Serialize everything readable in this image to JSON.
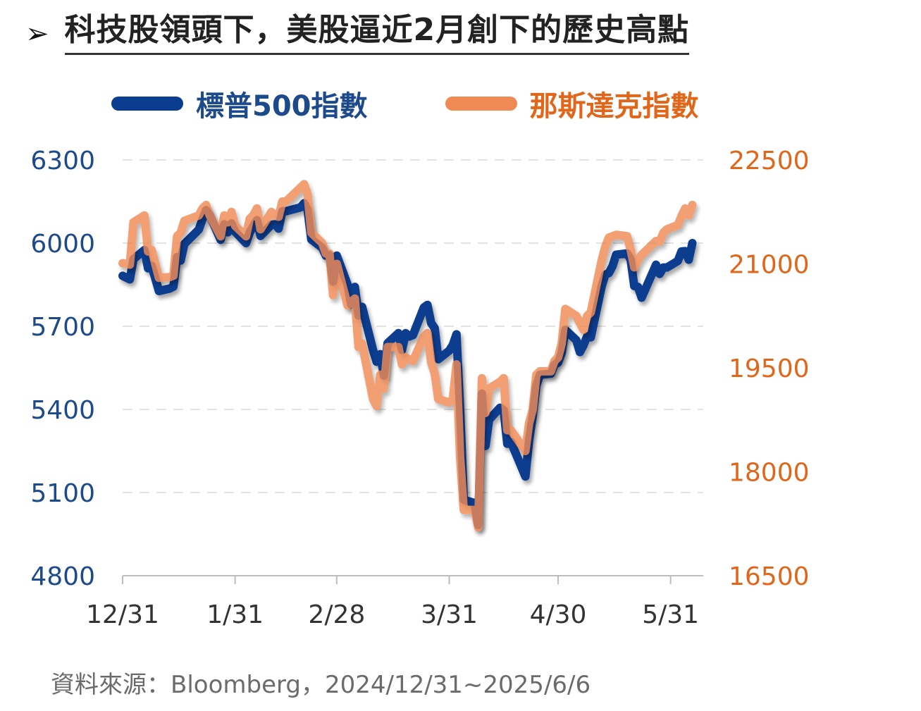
{
  "header": {
    "arrow": "➢",
    "title": "科技股領頭下，美股逼近2月創下的歷史高點"
  },
  "legend": [
    {
      "label": "標普500指數",
      "color": "#0a3d8f"
    },
    {
      "label": "那斯達克指數",
      "color": "#f08a55"
    }
  ],
  "label_colors": {
    "left_axis": "#1d4a8a",
    "right_axis": "#e0661a",
    "legend_right": "#e0661a"
  },
  "source": "資料來源：Bloomberg，2024/12/31~2025/6/6",
  "chart_data": {
    "type": "line",
    "x_ticks": [
      "12/31",
      "1/31",
      "2/28",
      "3/31",
      "4/30",
      "5/31"
    ],
    "y_left": {
      "ticks": [
        "6300",
        "6000",
        "5700",
        "5400",
        "5100",
        "4800"
      ],
      "range": [
        4800,
        6300
      ]
    },
    "y_right": {
      "ticks": [
        "22500",
        "21000",
        "19500",
        "18000",
        "16500"
      ],
      "range": [
        16500,
        22500
      ]
    },
    "grid": "horizontal-dashed",
    "series": [
      {
        "name": "標普500指數",
        "axis": "left",
        "color": "#0a3d8f",
        "dates": [
          "2024-12-31",
          "2025-01-02",
          "2025-01-03",
          "2025-01-06",
          "2025-01-07",
          "2025-01-08",
          "2025-01-10",
          "2025-01-13",
          "2025-01-14",
          "2025-01-15",
          "2025-01-16",
          "2025-01-17",
          "2025-01-21",
          "2025-01-22",
          "2025-01-23",
          "2025-01-24",
          "2025-01-27",
          "2025-01-28",
          "2025-01-29",
          "2025-01-30",
          "2025-01-31",
          "2025-02-03",
          "2025-02-04",
          "2025-02-05",
          "2025-02-06",
          "2025-02-07",
          "2025-02-10",
          "2025-02-11",
          "2025-02-12",
          "2025-02-13",
          "2025-02-14",
          "2025-02-18",
          "2025-02-19",
          "2025-02-20",
          "2025-02-21",
          "2025-02-24",
          "2025-02-25",
          "2025-02-26",
          "2025-02-27",
          "2025-02-28",
          "2025-03-03",
          "2025-03-04",
          "2025-03-05",
          "2025-03-06",
          "2025-03-07",
          "2025-03-10",
          "2025-03-11",
          "2025-03-12",
          "2025-03-13",
          "2025-03-14",
          "2025-03-17",
          "2025-03-18",
          "2025-03-19",
          "2025-03-20",
          "2025-03-21",
          "2025-03-24",
          "2025-03-25",
          "2025-03-26",
          "2025-03-27",
          "2025-03-28",
          "2025-03-31",
          "2025-04-01",
          "2025-04-02",
          "2025-04-03",
          "2025-04-04",
          "2025-04-07",
          "2025-04-08",
          "2025-04-09",
          "2025-04-10",
          "2025-04-11",
          "2025-04-14",
          "2025-04-15",
          "2025-04-16",
          "2025-04-17",
          "2025-04-21",
          "2025-04-22",
          "2025-04-23",
          "2025-04-24",
          "2025-04-25",
          "2025-04-28",
          "2025-04-29",
          "2025-04-30",
          "2025-05-01",
          "2025-05-02",
          "2025-05-05",
          "2025-05-06",
          "2025-05-07",
          "2025-05-08",
          "2025-05-09",
          "2025-05-12",
          "2025-05-13",
          "2025-05-14",
          "2025-05-15",
          "2025-05-16",
          "2025-05-19",
          "2025-05-20",
          "2025-05-21",
          "2025-05-22",
          "2025-05-23",
          "2025-05-27",
          "2025-05-28",
          "2025-05-29",
          "2025-05-30",
          "2025-06-02",
          "2025-06-03",
          "2025-06-04",
          "2025-06-05",
          "2025-06-06"
        ],
        "values": [
          5882,
          5869,
          5942,
          5975,
          5909,
          5918,
          5827,
          5836,
          5843,
          5950,
          5937,
          5997,
          6049,
          6086,
          6119,
          6101,
          6012,
          6068,
          6039,
          6071,
          6041,
          6000,
          6038,
          6061,
          6083,
          6026,
          6066,
          6068,
          6052,
          6115,
          6115,
          6129,
          6144,
          6118,
          6013,
          5983,
          5955,
          5956,
          5861,
          5955,
          5850,
          5778,
          5842,
          5739,
          5770,
          5614,
          5572,
          5599,
          5522,
          5639,
          5675,
          5615,
          5675,
          5663,
          5668,
          5768,
          5777,
          5712,
          5693,
          5581,
          5612,
          5633,
          5671,
          5397,
          5074,
          5062,
          4983,
          5457,
          5268,
          5363,
          5406,
          5397,
          5276,
          5283,
          5158,
          5287,
          5376,
          5485,
          5525,
          5529,
          5561,
          5569,
          5604,
          5687,
          5650,
          5607,
          5631,
          5664,
          5660,
          5844,
          5886,
          5892,
          5917,
          5958,
          5963,
          5940,
          5845,
          5842,
          5803,
          5922,
          5889,
          5912,
          5912,
          5936,
          5970,
          5971,
          5940,
          6000
        ]
      },
      {
        "name": "那斯達克指數",
        "axis": "right",
        "color": "#f08a55",
        "dates": [
          "2024-12-31",
          "2025-01-02",
          "2025-01-03",
          "2025-01-06",
          "2025-01-07",
          "2025-01-08",
          "2025-01-10",
          "2025-01-13",
          "2025-01-14",
          "2025-01-15",
          "2025-01-16",
          "2025-01-17",
          "2025-01-21",
          "2025-01-22",
          "2025-01-23",
          "2025-01-24",
          "2025-01-27",
          "2025-01-28",
          "2025-01-29",
          "2025-01-30",
          "2025-01-31",
          "2025-02-03",
          "2025-02-04",
          "2025-02-05",
          "2025-02-06",
          "2025-02-07",
          "2025-02-10",
          "2025-02-11",
          "2025-02-12",
          "2025-02-13",
          "2025-02-14",
          "2025-02-18",
          "2025-02-19",
          "2025-02-20",
          "2025-02-21",
          "2025-02-24",
          "2025-02-25",
          "2025-02-26",
          "2025-02-27",
          "2025-02-28",
          "2025-03-03",
          "2025-03-04",
          "2025-03-05",
          "2025-03-06",
          "2025-03-07",
          "2025-03-10",
          "2025-03-11",
          "2025-03-12",
          "2025-03-13",
          "2025-03-14",
          "2025-03-17",
          "2025-03-18",
          "2025-03-19",
          "2025-03-20",
          "2025-03-21",
          "2025-03-24",
          "2025-03-25",
          "2025-03-26",
          "2025-03-27",
          "2025-03-28",
          "2025-03-31",
          "2025-04-01",
          "2025-04-02",
          "2025-04-03",
          "2025-04-04",
          "2025-04-07",
          "2025-04-08",
          "2025-04-09",
          "2025-04-10",
          "2025-04-11",
          "2025-04-14",
          "2025-04-15",
          "2025-04-16",
          "2025-04-17",
          "2025-04-21",
          "2025-04-22",
          "2025-04-23",
          "2025-04-24",
          "2025-04-25",
          "2025-04-28",
          "2025-04-29",
          "2025-04-30",
          "2025-05-01",
          "2025-05-02",
          "2025-05-05",
          "2025-05-06",
          "2025-05-07",
          "2025-05-08",
          "2025-05-09",
          "2025-05-12",
          "2025-05-13",
          "2025-05-14",
          "2025-05-15",
          "2025-05-16",
          "2025-05-19",
          "2025-05-20",
          "2025-05-21",
          "2025-05-22",
          "2025-05-23",
          "2025-05-27",
          "2025-05-28",
          "2025-05-29",
          "2025-05-30",
          "2025-06-02",
          "2025-06-03",
          "2025-06-04",
          "2025-06-05",
          "2025-06-06"
        ],
        "values": [
          21010,
          20990,
          21600,
          21700,
          21180,
          21200,
          20800,
          20810,
          20830,
          21400,
          21450,
          21620,
          21700,
          21800,
          21850,
          21700,
          21400,
          21700,
          21600,
          21750,
          21550,
          21400,
          21650,
          21700,
          21800,
          21500,
          21750,
          21700,
          21680,
          21900,
          21900,
          22100,
          22150,
          22000,
          21450,
          21300,
          21150,
          21150,
          20550,
          21000,
          20400,
          20450,
          20500,
          19800,
          19850,
          19050,
          18950,
          19400,
          19200,
          19800,
          19800,
          19550,
          19650,
          19620,
          19600,
          19950,
          20000,
          19580,
          19420,
          19050,
          19000,
          19050,
          19550,
          18200,
          17450,
          17450,
          17200,
          19350,
          18850,
          19200,
          19300,
          19350,
          18600,
          18600,
          18300,
          18700,
          18900,
          19400,
          19450,
          19450,
          19600,
          19650,
          19850,
          20350,
          20250,
          20150,
          20050,
          20250,
          20300,
          21050,
          21250,
          21380,
          21400,
          21420,
          21400,
          21200,
          20950,
          21050,
          21130,
          21330,
          21320,
          21450,
          21500,
          21560,
          21690,
          21800,
          21700,
          21850
        ]
      }
    ]
  }
}
